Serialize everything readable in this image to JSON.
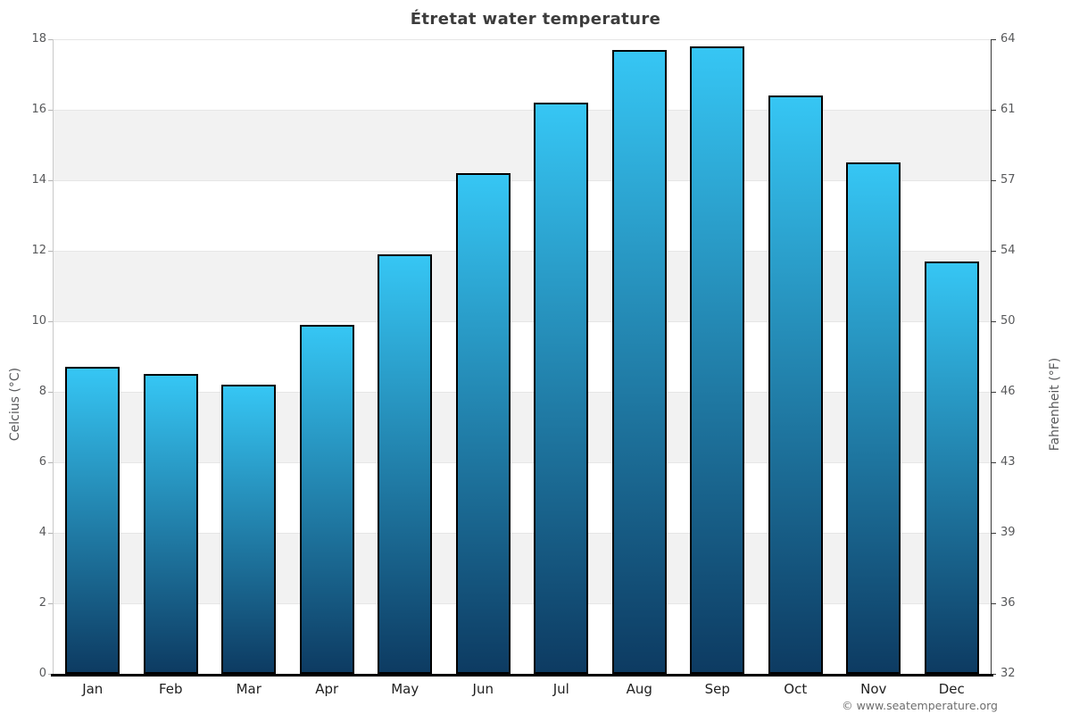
{
  "chart_data": {
    "type": "bar",
    "title": "Étretat water temperature",
    "categories": [
      "Jan",
      "Feb",
      "Mar",
      "Apr",
      "May",
      "Jun",
      "Jul",
      "Aug",
      "Sep",
      "Oct",
      "Nov",
      "Dec"
    ],
    "values": [
      8.7,
      8.5,
      8.2,
      9.9,
      11.9,
      14.2,
      16.2,
      17.7,
      17.8,
      16.4,
      14.5,
      11.7
    ],
    "xlabel": "",
    "ylabel_left": "Celcius (°C)",
    "ylabel_right": "Fahrenheit (°F)",
    "ylim": [
      0,
      18
    ],
    "left_ticks": [
      0,
      2,
      4,
      6,
      8,
      10,
      12,
      14,
      16,
      18
    ],
    "right_ticks": [
      32,
      36,
      39,
      43,
      46,
      50,
      54,
      57,
      61,
      64
    ],
    "band_ranges": [
      [
        2,
        4
      ],
      [
        6,
        8
      ],
      [
        10,
        12
      ],
      [
        14,
        16
      ]
    ],
    "grid": true,
    "legend": "none"
  },
  "footer": {
    "copyright": "© www.seatemperature.org"
  },
  "colors": {
    "bar_top": "#36c6f4",
    "bar_bottom": "#0d3b62",
    "bar_border": "#000000",
    "band_fill": "#f2f2f2",
    "gridline": "#e6e6e6",
    "left_axis_line": "#c9c9c9",
    "left_tick_mark": "#b3b3b3",
    "right_axis_line": "#3a3a3a",
    "x_axis_line": "#000000",
    "title_text": "#3c3c3c",
    "y_tick_text": "#58595b",
    "x_tick_text": "#1f1f1f",
    "axis_title_text": "#58595b",
    "copyright_text": "#6e6e6e"
  }
}
